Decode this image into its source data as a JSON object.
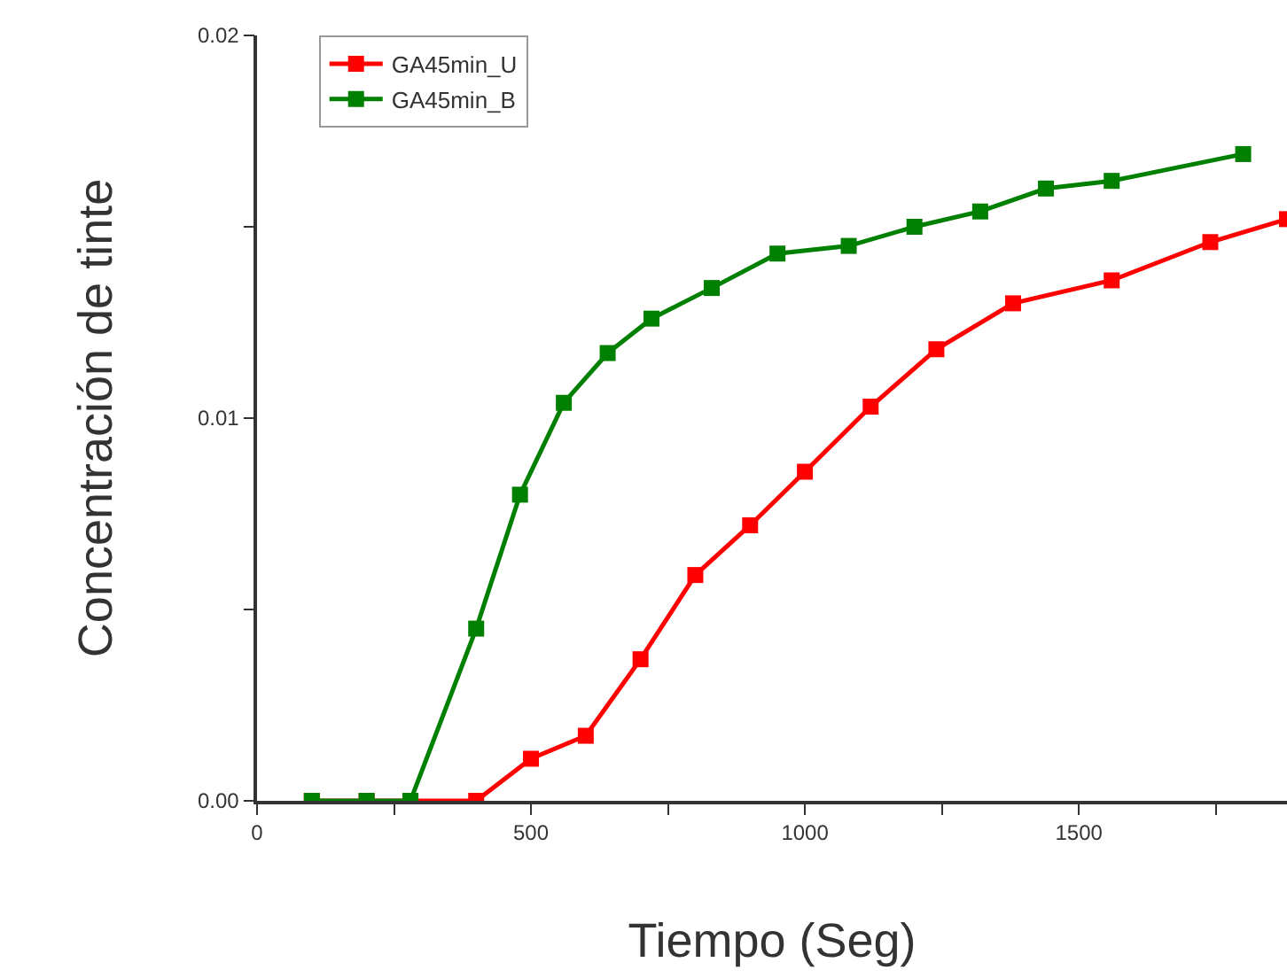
{
  "chart_data": {
    "type": "line",
    "xlabel": "Tiempo (Seg)",
    "ylabel": "Concentración de tinte",
    "marker": "square",
    "legend": "top left",
    "grid": false,
    "xlim": [
      0,
      1880
    ],
    "ylim": [
      0,
      0.02
    ],
    "xticks": [
      0,
      {
        "value": 250,
        "label": null
      },
      500,
      {
        "value": 750,
        "label": null
      },
      1000,
      {
        "value": 1250,
        "label": null
      },
      1500,
      {
        "value": 1750,
        "label": null
      }
    ],
    "yticks": [
      {
        "value": 0,
        "label": "0.00"
      },
      {
        "value": 0.005,
        "label": null
      },
      {
        "value": 0.01,
        "label": "0.01"
      },
      {
        "value": 0.015,
        "label": null
      },
      {
        "value": 0.02,
        "label": "0.02"
      }
    ],
    "series": [
      {
        "name": "GA45min_U",
        "color": "#ff0000",
        "x": [
          100,
          200,
          280,
          400,
          500,
          600,
          700,
          800,
          900,
          1000,
          1120,
          1240,
          1380,
          1560,
          1740,
          1880
        ],
        "values": [
          0,
          0,
          0,
          0,
          0.0011,
          0.0017,
          0.0037,
          0.0059,
          0.0072,
          0.0086,
          0.0103,
          0.0118,
          0.013,
          0.0136,
          0.0146,
          0.0152
        ]
      },
      {
        "name": "GA45min_B",
        "color": "#008000",
        "x": [
          100,
          200,
          280,
          400,
          480,
          560,
          640,
          720,
          830,
          950,
          1080,
          1200,
          1320,
          1440,
          1560,
          1800
        ],
        "values": [
          0,
          0,
          0,
          0.0045,
          0.008,
          0.0104,
          0.0117,
          0.0126,
          0.0134,
          0.0143,
          0.0145,
          0.015,
          0.0154,
          0.016,
          0.0162,
          0.0169
        ]
      }
    ]
  }
}
